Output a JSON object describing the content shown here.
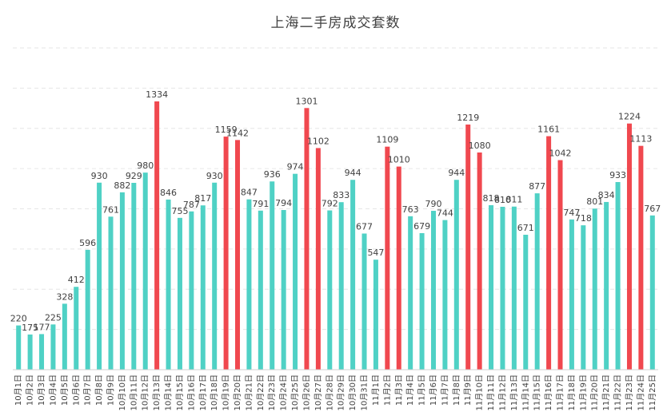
{
  "chart_data": {
    "type": "bar",
    "title": "上海二手房成交套数",
    "xlabel": "",
    "ylabel": "",
    "ylim": [
      0,
      1600
    ],
    "grid": true,
    "colors": {
      "normal": "#4fd1c5",
      "highlight": "#f0484f"
    },
    "categories": [
      "10月1日",
      "10月2日",
      "10月3日",
      "10月4日",
      "10月5日",
      "10月6日",
      "10月7日",
      "10月8日",
      "10月9日",
      "10月10日",
      "10月11日",
      "10月12日",
      "10月13日",
      "10月14日",
      "10月15日",
      "10月16日",
      "10月17日",
      "10月18日",
      "10月19日",
      "10月20日",
      "10月21日",
      "10月22日",
      "10月23日",
      "10月24日",
      "10月25日",
      "10月26日",
      "10月27日",
      "10月28日",
      "10月29日",
      "10月30日",
      "10月31日",
      "11月1日",
      "11月2日",
      "11月3日",
      "11月4日",
      "11月5日",
      "11月6日",
      "11月7日",
      "11月8日",
      "11月9日",
      "11月10日",
      "11月11日",
      "11月12日",
      "11月13日",
      "11月14日",
      "11月15日",
      "11月16日",
      "11月17日",
      "11月18日",
      "11月19日",
      "11月20日",
      "11月21日",
      "11月22日",
      "11月23日",
      "11月24日",
      "11月25日"
    ],
    "values": [
      220,
      175,
      177,
      225,
      328,
      412,
      596,
      930,
      761,
      882,
      929,
      980,
      1334,
      846,
      755,
      787,
      817,
      930,
      1159,
      1142,
      847,
      791,
      936,
      794,
      974,
      1301,
      1102,
      792,
      833,
      944,
      677,
      547,
      1109,
      1010,
      763,
      679,
      790,
      744,
      944,
      1219,
      1080,
      818,
      810,
      811,
      671,
      877,
      1161,
      1042,
      747,
      718,
      801,
      834,
      933,
      1224,
      1113,
      767
    ],
    "highlight": [
      false,
      false,
      false,
      false,
      false,
      false,
      false,
      false,
      false,
      false,
      false,
      false,
      true,
      false,
      false,
      false,
      false,
      false,
      true,
      true,
      false,
      false,
      false,
      false,
      false,
      true,
      true,
      false,
      false,
      false,
      false,
      false,
      true,
      true,
      false,
      false,
      false,
      false,
      false,
      true,
      true,
      false,
      false,
      false,
      false,
      false,
      true,
      true,
      false,
      false,
      false,
      false,
      false,
      true,
      true,
      false
    ]
  }
}
